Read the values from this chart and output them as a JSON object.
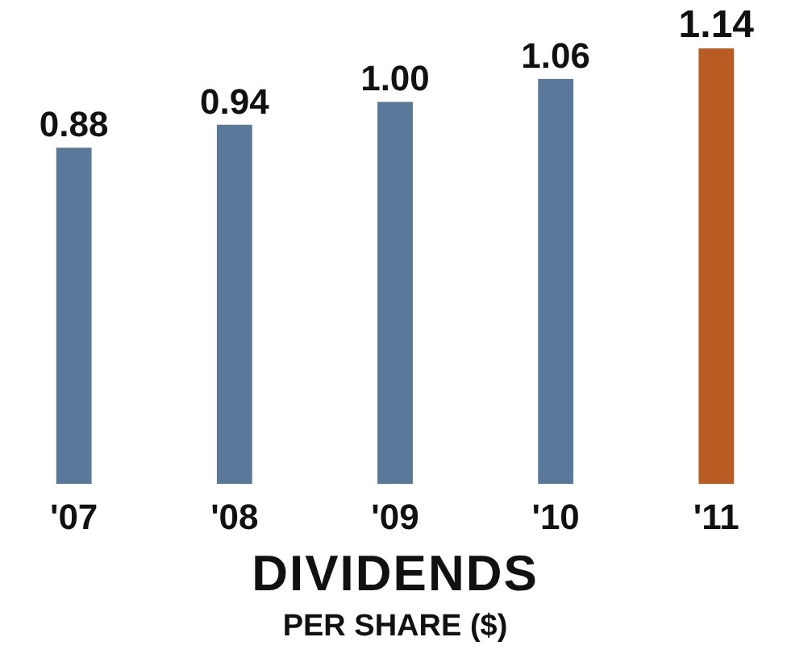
{
  "chart_data": {
    "type": "bar",
    "title": "DIVIDENDS",
    "subtitle": "PER SHARE ($)",
    "categories": [
      "'07",
      "'08",
      "'09",
      "'10",
      "'11"
    ],
    "values": [
      0.88,
      0.94,
      1.0,
      1.06,
      1.14
    ],
    "value_labels": [
      "0.88",
      "0.94",
      "1.00",
      "1.06",
      "1.14"
    ],
    "colors": [
      "#5a7899",
      "#5a7899",
      "#5a7899",
      "#5a7899",
      "#b85c24"
    ]
  }
}
